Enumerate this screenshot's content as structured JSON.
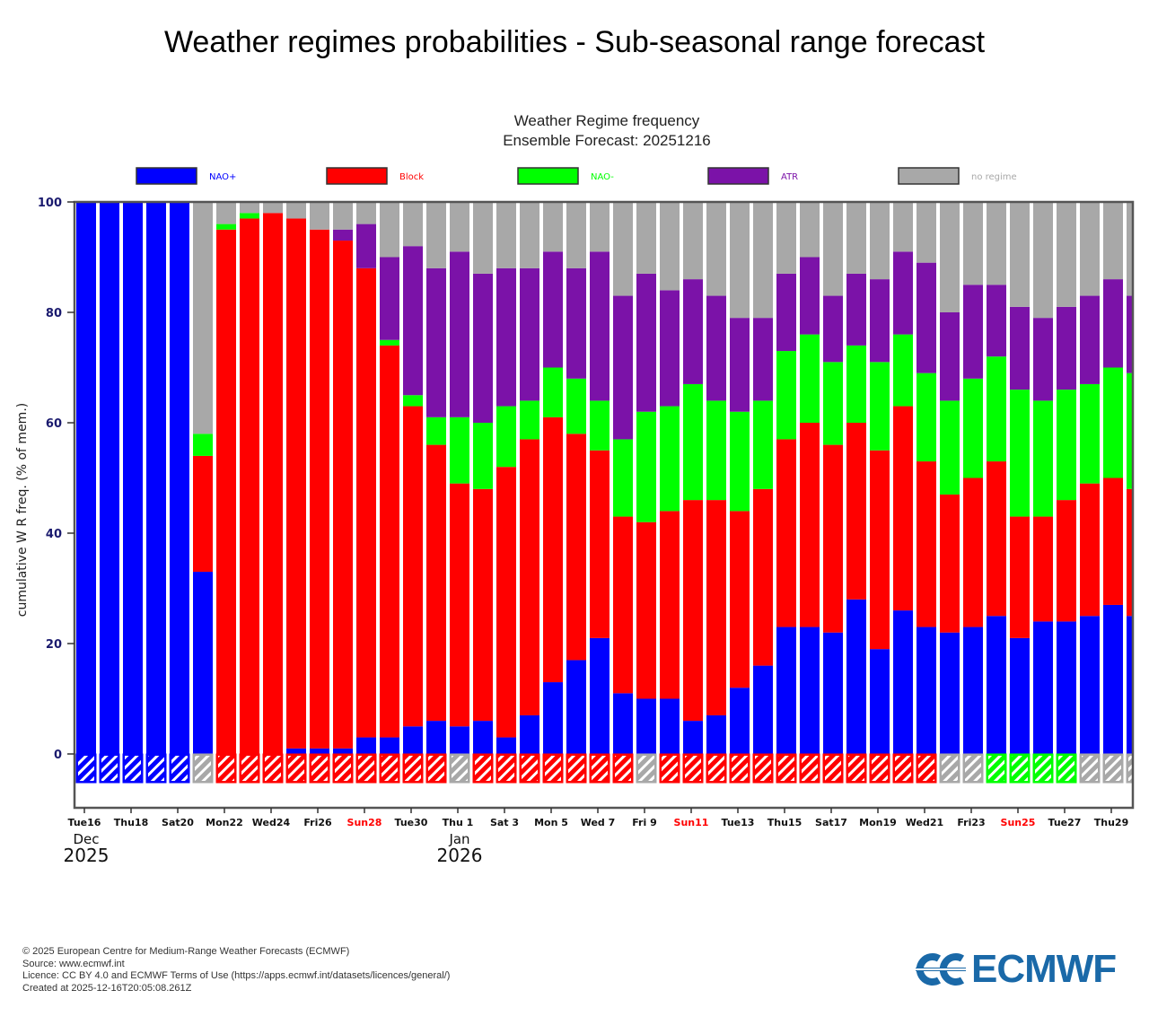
{
  "page": {
    "title": "Weather regimes probabilities - Sub-seasonal range forecast"
  },
  "footer": {
    "copyright": "© 2025 European Centre for Medium-Range Weather Forecasts (ECMWF)",
    "source": "Source: www.ecmwf.int",
    "licence": "Licence: CC BY 4.0 and ECMWF Terms of Use (https://apps.ecmwf.int/datasets/licences/general/)",
    "created": "Created at 2025-12-16T20:05:08.261Z",
    "logo_text": "ECMWF",
    "logo_color": "#1a69a8"
  },
  "chart_data": {
    "type": "bar",
    "stacked": true,
    "title": "Weather Regime frequency",
    "subtitle": "Ensemble Forecast: 20251216",
    "xlabel": "",
    "ylabel": "cumulative W R freq.  (% of mem.)",
    "ylim": [
      0,
      100
    ],
    "yticks": [
      0,
      20,
      40,
      60,
      80,
      100
    ],
    "grid": false,
    "legend_position": "top",
    "legend": [
      {
        "name": "NAO+",
        "color": "#0000ff"
      },
      {
        "name": "Block",
        "color": "#ff0000"
      },
      {
        "name": "NAO-",
        "color": "#00ff00"
      },
      {
        "name": "ATR",
        "color": "#7b12a8"
      },
      {
        "name": "no regime",
        "color": "#a8a8a8"
      }
    ],
    "dates": [
      "2025-12-16",
      "2025-12-17",
      "2025-12-18",
      "2025-12-19",
      "2025-12-20",
      "2025-12-21",
      "2025-12-22",
      "2025-12-23",
      "2025-12-24",
      "2025-12-25",
      "2025-12-26",
      "2025-12-27",
      "2025-12-28",
      "2025-12-29",
      "2025-12-30",
      "2025-12-31",
      "2026-01-01",
      "2026-01-02",
      "2026-01-03",
      "2026-01-04",
      "2026-01-05",
      "2026-01-06",
      "2026-01-07",
      "2026-01-08",
      "2026-01-09",
      "2026-01-10",
      "2026-01-11",
      "2026-01-12",
      "2026-01-13",
      "2026-01-14",
      "2026-01-15",
      "2026-01-16",
      "2026-01-17",
      "2026-01-18",
      "2026-01-19",
      "2026-01-20",
      "2026-01-21",
      "2026-01-22",
      "2026-01-23",
      "2026-01-24",
      "2026-01-25",
      "2026-01-26",
      "2026-01-27",
      "2026-01-28",
      "2026-01-29",
      "2026-01-30"
    ],
    "tick_labels": [
      {
        "index": 0,
        "label": "Tue16",
        "weekend": false
      },
      {
        "index": 2,
        "label": "Thu18",
        "weekend": false
      },
      {
        "index": 4,
        "label": "Sat20",
        "weekend": false
      },
      {
        "index": 6,
        "label": "Mon22",
        "weekend": false
      },
      {
        "index": 8,
        "label": "Wed24",
        "weekend": false
      },
      {
        "index": 10,
        "label": "Fri26",
        "weekend": false
      },
      {
        "index": 12,
        "label": "Sun28",
        "weekend": true
      },
      {
        "index": 14,
        "label": "Tue30",
        "weekend": false
      },
      {
        "index": 16,
        "label": "Thu 1",
        "weekend": false
      },
      {
        "index": 18,
        "label": "Sat 3",
        "weekend": false
      },
      {
        "index": 20,
        "label": "Mon 5",
        "weekend": false
      },
      {
        "index": 22,
        "label": "Wed 7",
        "weekend": false
      },
      {
        "index": 24,
        "label": "Fri 9",
        "weekend": false
      },
      {
        "index": 26,
        "label": "Sun11",
        "weekend": true
      },
      {
        "index": 28,
        "label": "Tue13",
        "weekend": false
      },
      {
        "index": 30,
        "label": "Thu15",
        "weekend": false
      },
      {
        "index": 32,
        "label": "Sat17",
        "weekend": false
      },
      {
        "index": 34,
        "label": "Mon19",
        "weekend": false
      },
      {
        "index": 36,
        "label": "Wed21",
        "weekend": false
      },
      {
        "index": 38,
        "label": "Fri23",
        "weekend": false
      },
      {
        "index": 40,
        "label": "Sun25",
        "weekend": true
      },
      {
        "index": 42,
        "label": "Tue27",
        "weekend": false
      },
      {
        "index": 44,
        "label": "Thu29",
        "weekend": false
      }
    ],
    "month_labels": [
      {
        "index": 0,
        "month": "Dec",
        "year": "2025"
      },
      {
        "index": 16,
        "month": "Jan",
        "year": "2026"
      }
    ],
    "series": [
      {
        "name": "NAO+",
        "color": "#0000ff",
        "values": [
          100,
          100,
          100,
          100,
          100,
          33,
          0,
          0,
          0,
          1,
          1,
          1,
          3,
          3,
          5,
          6,
          5,
          6,
          3,
          7,
          13,
          17,
          21,
          11,
          10,
          10,
          6,
          7,
          12,
          16,
          23,
          23,
          22,
          28,
          19,
          26,
          23,
          22,
          23,
          25,
          21,
          24,
          24,
          25,
          27,
          25
        ]
      },
      {
        "name": "Block",
        "color": "#ff0000",
        "values": [
          0,
          0,
          0,
          0,
          0,
          21,
          95,
          97,
          98,
          96,
          94,
          92,
          85,
          71,
          58,
          50,
          44,
          42,
          49,
          50,
          48,
          41,
          34,
          32,
          32,
          34,
          40,
          39,
          32,
          32,
          34,
          37,
          34,
          32,
          36,
          37,
          30,
          25,
          27,
          28,
          22,
          19,
          22,
          24,
          23,
          23
        ]
      },
      {
        "name": "NAO-",
        "color": "#00ff00",
        "values": [
          0,
          0,
          0,
          0,
          0,
          4,
          1,
          1,
          0,
          0,
          0,
          0,
          0,
          1,
          2,
          5,
          12,
          12,
          11,
          7,
          9,
          10,
          9,
          14,
          20,
          19,
          21,
          18,
          18,
          16,
          16,
          16,
          15,
          14,
          16,
          13,
          16,
          17,
          18,
          19,
          23,
          21,
          20,
          18,
          20,
          21
        ]
      },
      {
        "name": "ATR",
        "color": "#7b12a8",
        "values": [
          0,
          0,
          0,
          0,
          0,
          0,
          0,
          0,
          0,
          0,
          0,
          2,
          8,
          15,
          27,
          27,
          30,
          27,
          25,
          24,
          21,
          20,
          27,
          26,
          25,
          21,
          19,
          19,
          17,
          15,
          14,
          14,
          12,
          13,
          15,
          15,
          20,
          16,
          17,
          13,
          15,
          15,
          15,
          16,
          16,
          14
        ]
      },
      {
        "name": "no regime",
        "color": "#a8a8a8",
        "values": [
          0,
          0,
          0,
          0,
          0,
          42,
          4,
          2,
          2,
          3,
          5,
          5,
          4,
          10,
          8,
          12,
          9,
          13,
          12,
          12,
          9,
          12,
          9,
          17,
          13,
          16,
          14,
          17,
          21,
          21,
          13,
          10,
          17,
          13,
          14,
          9,
          11,
          20,
          15,
          15,
          19,
          21,
          19,
          17,
          14,
          17
        ]
      }
    ],
    "dominant_regime": [
      "NAO+",
      "NAO+",
      "NAO+",
      "NAO+",
      "NAO+",
      "no regime",
      "Block",
      "Block",
      "Block",
      "Block",
      "Block",
      "Block",
      "Block",
      "Block",
      "Block",
      "Block",
      "no regime",
      "Block",
      "Block",
      "Block",
      "Block",
      "Block",
      "Block",
      "Block",
      "no regime",
      "Block",
      "Block",
      "Block",
      "Block",
      "Block",
      "Block",
      "Block",
      "Block",
      "Block",
      "Block",
      "Block",
      "Block",
      "no regime",
      "no regime",
      "NAO-",
      "NAO-",
      "NAO-",
      "NAO-",
      "no regime",
      "no regime",
      "no regime"
    ]
  }
}
